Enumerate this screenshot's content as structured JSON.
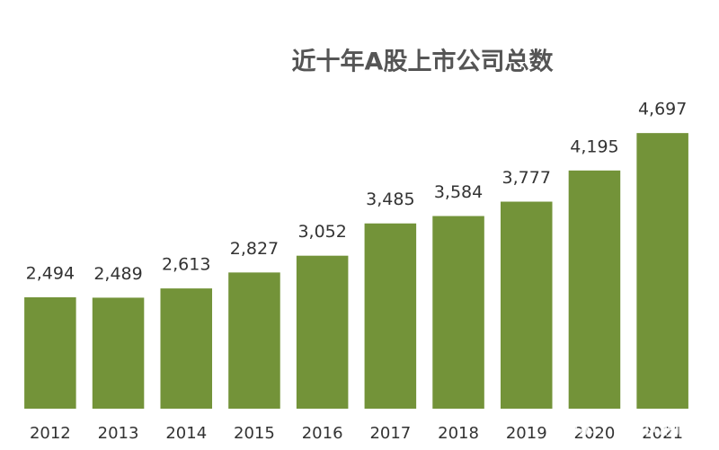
{
  "chart_data": {
    "type": "bar",
    "title": "近十年A股上市公司总数",
    "categories": [
      "2012",
      "2013",
      "2014",
      "2015",
      "2016",
      "2017",
      "2018",
      "2019",
      "2020",
      "2021"
    ],
    "values": [
      2494,
      2489,
      2613,
      2827,
      3052,
      3485,
      3584,
      3777,
      4195,
      4697
    ],
    "value_labels": [
      "2,494",
      "2,489",
      "2,613",
      "2,827",
      "3,052",
      "3,485",
      "3,584",
      "3,777",
      "4,195",
      "4,697"
    ],
    "color": "#739339",
    "ylim": [
      1000,
      5000
    ],
    "watermark": "雪球：楼市洞察"
  }
}
